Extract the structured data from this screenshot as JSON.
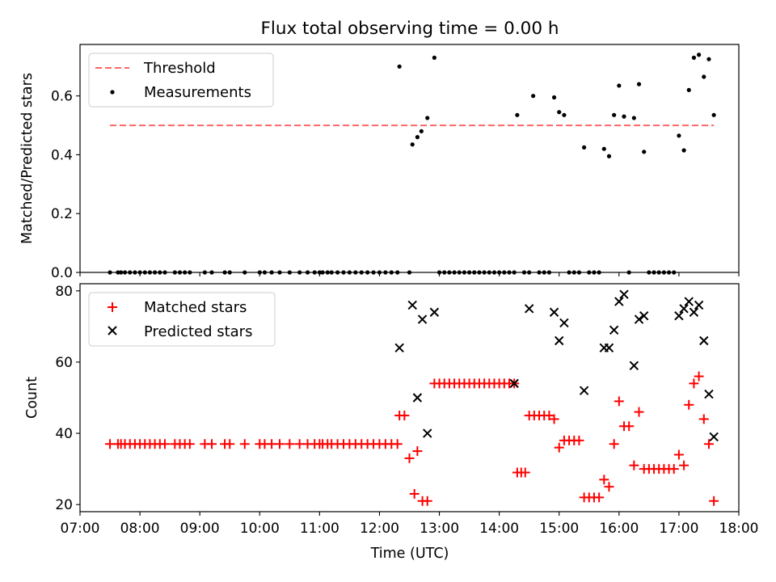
{
  "chart_data": [
    {
      "type": "scatter",
      "title": "Flux total observing time = 0.00 h",
      "xlabel": "",
      "ylabel": "Matched/Predicted stars",
      "xlim": [
        "07:00",
        "18:00"
      ],
      "ylim": [
        0.0,
        0.775
      ],
      "xticks": [
        "07:00",
        "08:00",
        "09:00",
        "10:00",
        "11:00",
        "12:00",
        "13:00",
        "14:00",
        "15:00",
        "16:00",
        "17:00",
        "18:00"
      ],
      "yticks": [
        "0.0",
        "0.2",
        "0.4",
        "0.6"
      ],
      "legend": "top-left",
      "grid": false,
      "threshold": {
        "name": "Threshold",
        "color": "#ff6666",
        "y": 0.5,
        "x": [
          "07:30",
          "17:35"
        ]
      },
      "series": [
        {
          "name": "Measurements",
          "color": "#000000",
          "points": [
            [
              "07:30",
              0
            ],
            [
              "07:38",
              0
            ],
            [
              "07:41",
              0
            ],
            [
              "07:45",
              0
            ],
            [
              "07:50",
              0
            ],
            [
              "07:55",
              0
            ],
            [
              "08:00",
              0
            ],
            [
              "08:05",
              0
            ],
            [
              "08:10",
              0
            ],
            [
              "08:15",
              0
            ],
            [
              "08:20",
              0
            ],
            [
              "08:25",
              0
            ],
            [
              "08:35",
              0
            ],
            [
              "08:40",
              0
            ],
            [
              "08:45",
              0
            ],
            [
              "08:50",
              0
            ],
            [
              "09:05",
              0
            ],
            [
              "09:12",
              0
            ],
            [
              "09:25",
              0
            ],
            [
              "09:30",
              0
            ],
            [
              "09:45",
              0
            ],
            [
              "10:00",
              0
            ],
            [
              "10:05",
              0
            ],
            [
              "10:12",
              0
            ],
            [
              "10:20",
              0
            ],
            [
              "10:30",
              0
            ],
            [
              "10:40",
              0
            ],
            [
              "10:48",
              0
            ],
            [
              "10:55",
              0
            ],
            [
              "11:00",
              0
            ],
            [
              "11:03",
              0
            ],
            [
              "11:08",
              0
            ],
            [
              "11:12",
              0
            ],
            [
              "11:18",
              0
            ],
            [
              "11:24",
              0
            ],
            [
              "11:30",
              0
            ],
            [
              "11:36",
              0
            ],
            [
              "11:42",
              0
            ],
            [
              "11:48",
              0
            ],
            [
              "11:54",
              0
            ],
            [
              "12:00",
              0
            ],
            [
              "12:06",
              0
            ],
            [
              "12:12",
              0
            ],
            [
              "12:18",
              0
            ],
            [
              "12:20",
              0.7
            ],
            [
              "12:30",
              0
            ],
            [
              "12:33",
              0.435
            ],
            [
              "12:38",
              0.46
            ],
            [
              "12:42",
              0.48
            ],
            [
              "12:48",
              0.525
            ],
            [
              "12:55",
              0.73
            ],
            [
              "13:00",
              0
            ],
            [
              "13:05",
              0
            ],
            [
              "13:10",
              0
            ],
            [
              "13:15",
              0
            ],
            [
              "13:20",
              0
            ],
            [
              "13:25",
              0
            ],
            [
              "13:30",
              0
            ],
            [
              "13:35",
              0
            ],
            [
              "13:40",
              0
            ],
            [
              "13:45",
              0
            ],
            [
              "13:50",
              0
            ],
            [
              "13:55",
              0
            ],
            [
              "14:00",
              0
            ],
            [
              "14:05",
              0
            ],
            [
              "14:10",
              0
            ],
            [
              "14:15",
              0
            ],
            [
              "14:18",
              0.535
            ],
            [
              "14:25",
              0
            ],
            [
              "14:30",
              0
            ],
            [
              "14:34",
              0.6
            ],
            [
              "14:40",
              0
            ],
            [
              "14:45",
              0
            ],
            [
              "14:50",
              0
            ],
            [
              "14:55",
              0.595
            ],
            [
              "15:00",
              0.545
            ],
            [
              "15:05",
              0.535
            ],
            [
              "15:10",
              0
            ],
            [
              "15:15",
              0
            ],
            [
              "15:20",
              0
            ],
            [
              "15:25",
              0.425
            ],
            [
              "15:30",
              0
            ],
            [
              "15:35",
              0
            ],
            [
              "15:40",
              0
            ],
            [
              "15:45",
              0.42
            ],
            [
              "15:50",
              0.395
            ],
            [
              "15:55",
              0.535
            ],
            [
              "16:00",
              0.635
            ],
            [
              "16:05",
              0.53
            ],
            [
              "16:10",
              0
            ],
            [
              "16:15",
              0.525
            ],
            [
              "16:20",
              0.64
            ],
            [
              "16:25",
              0.41
            ],
            [
              "16:30",
              0
            ],
            [
              "16:35",
              0
            ],
            [
              "16:40",
              0
            ],
            [
              "16:45",
              0
            ],
            [
              "16:50",
              0
            ],
            [
              "16:55",
              0
            ],
            [
              "17:00",
              0.465
            ],
            [
              "17:05",
              0.415
            ],
            [
              "17:10",
              0.62
            ],
            [
              "17:15",
              0.73
            ],
            [
              "17:20",
              0.74
            ],
            [
              "17:25",
              0.665
            ],
            [
              "17:30",
              0.725
            ],
            [
              "17:35",
              0.535
            ]
          ]
        }
      ]
    },
    {
      "type": "scatter",
      "title": "",
      "xlabel": "Time (UTC)",
      "ylabel": "Count",
      "xlim": [
        "07:00",
        "18:00"
      ],
      "ylim": [
        18,
        82
      ],
      "xticks": [
        "07:00",
        "08:00",
        "09:00",
        "10:00",
        "11:00",
        "12:00",
        "13:00",
        "14:00",
        "15:00",
        "16:00",
        "17:00",
        "18:00"
      ],
      "yticks": [
        "20",
        "40",
        "60",
        "80"
      ],
      "legend": "top-left",
      "grid": false,
      "series": [
        {
          "name": "Matched stars",
          "marker": "plus",
          "color": "#ff0000",
          "points": [
            [
              "07:30",
              37
            ],
            [
              "07:38",
              37
            ],
            [
              "07:41",
              37
            ],
            [
              "07:45",
              37
            ],
            [
              "07:50",
              37
            ],
            [
              "07:55",
              37
            ],
            [
              "08:00",
              37
            ],
            [
              "08:05",
              37
            ],
            [
              "08:10",
              37
            ],
            [
              "08:15",
              37
            ],
            [
              "08:20",
              37
            ],
            [
              "08:25",
              37
            ],
            [
              "08:35",
              37
            ],
            [
              "08:40",
              37
            ],
            [
              "08:45",
              37
            ],
            [
              "08:50",
              37
            ],
            [
              "09:05",
              37
            ],
            [
              "09:12",
              37
            ],
            [
              "09:25",
              37
            ],
            [
              "09:30",
              37
            ],
            [
              "09:45",
              37
            ],
            [
              "10:00",
              37
            ],
            [
              "10:05",
              37
            ],
            [
              "10:12",
              37
            ],
            [
              "10:20",
              37
            ],
            [
              "10:30",
              37
            ],
            [
              "10:40",
              37
            ],
            [
              "10:48",
              37
            ],
            [
              "10:55",
              37
            ],
            [
              "11:00",
              37
            ],
            [
              "11:03",
              37
            ],
            [
              "11:08",
              37
            ],
            [
              "11:12",
              37
            ],
            [
              "11:18",
              37
            ],
            [
              "11:24",
              37
            ],
            [
              "11:30",
              37
            ],
            [
              "11:36",
              37
            ],
            [
              "11:42",
              37
            ],
            [
              "11:48",
              37
            ],
            [
              "11:54",
              37
            ],
            [
              "12:00",
              37
            ],
            [
              "12:06",
              37
            ],
            [
              "12:12",
              37
            ],
            [
              "12:18",
              37
            ],
            [
              "12:20",
              45
            ],
            [
              "12:25",
              45
            ],
            [
              "12:30",
              33
            ],
            [
              "12:35",
              23
            ],
            [
              "12:38",
              35
            ],
            [
              "12:43",
              21
            ],
            [
              "12:48",
              21
            ],
            [
              "12:55",
              54
            ],
            [
              "13:00",
              54
            ],
            [
              "13:05",
              54
            ],
            [
              "13:10",
              54
            ],
            [
              "13:15",
              54
            ],
            [
              "13:20",
              54
            ],
            [
              "13:25",
              54
            ],
            [
              "13:30",
              54
            ],
            [
              "13:35",
              54
            ],
            [
              "13:40",
              54
            ],
            [
              "13:45",
              54
            ],
            [
              "13:50",
              54
            ],
            [
              "13:55",
              54
            ],
            [
              "14:00",
              54
            ],
            [
              "14:05",
              54
            ],
            [
              "14:10",
              54
            ],
            [
              "14:15",
              54
            ],
            [
              "14:18",
              29
            ],
            [
              "14:22",
              29
            ],
            [
              "14:26",
              29
            ],
            [
              "14:30",
              45
            ],
            [
              "14:35",
              45
            ],
            [
              "14:40",
              45
            ],
            [
              "14:45",
              45
            ],
            [
              "14:50",
              45
            ],
            [
              "14:55",
              44
            ],
            [
              "15:00",
              36
            ],
            [
              "15:05",
              38
            ],
            [
              "15:10",
              38
            ],
            [
              "15:15",
              38
            ],
            [
              "15:20",
              38
            ],
            [
              "15:25",
              22
            ],
            [
              "15:30",
              22
            ],
            [
              "15:35",
              22
            ],
            [
              "15:40",
              22
            ],
            [
              "15:45",
              27
            ],
            [
              "15:50",
              25
            ],
            [
              "15:55",
              37
            ],
            [
              "16:00",
              49
            ],
            [
              "16:05",
              42
            ],
            [
              "16:10",
              42
            ],
            [
              "16:15",
              31
            ],
            [
              "16:20",
              46
            ],
            [
              "16:25",
              30
            ],
            [
              "16:30",
              30
            ],
            [
              "16:35",
              30
            ],
            [
              "16:40",
              30
            ],
            [
              "16:45",
              30
            ],
            [
              "16:50",
              30
            ],
            [
              "16:55",
              30
            ],
            [
              "17:00",
              34
            ],
            [
              "17:05",
              31
            ],
            [
              "17:10",
              48
            ],
            [
              "17:15",
              54
            ],
            [
              "17:20",
              56
            ],
            [
              "17:25",
              44
            ],
            [
              "17:30",
              37
            ],
            [
              "17:35",
              21
            ]
          ]
        },
        {
          "name": "Predicted stars",
          "marker": "cross",
          "color": "#000000",
          "points": [
            [
              "12:20",
              64
            ],
            [
              "12:33",
              76
            ],
            [
              "12:38",
              50
            ],
            [
              "12:43",
              72
            ],
            [
              "12:48",
              40
            ],
            [
              "12:55",
              74
            ],
            [
              "14:15",
              54
            ],
            [
              "14:30",
              75
            ],
            [
              "14:55",
              74
            ],
            [
              "15:00",
              66
            ],
            [
              "15:05",
              71
            ],
            [
              "15:25",
              52
            ],
            [
              "15:45",
              64
            ],
            [
              "15:50",
              64
            ],
            [
              "15:55",
              69
            ],
            [
              "16:00",
              77
            ],
            [
              "16:05",
              79
            ],
            [
              "16:15",
              59
            ],
            [
              "16:20",
              72
            ],
            [
              "16:25",
              73
            ],
            [
              "17:00",
              73
            ],
            [
              "17:05",
              75
            ],
            [
              "17:10",
              77
            ],
            [
              "17:15",
              74
            ],
            [
              "17:20",
              76
            ],
            [
              "17:25",
              66
            ],
            [
              "17:30",
              51
            ],
            [
              "17:35",
              39
            ]
          ]
        }
      ]
    }
  ]
}
